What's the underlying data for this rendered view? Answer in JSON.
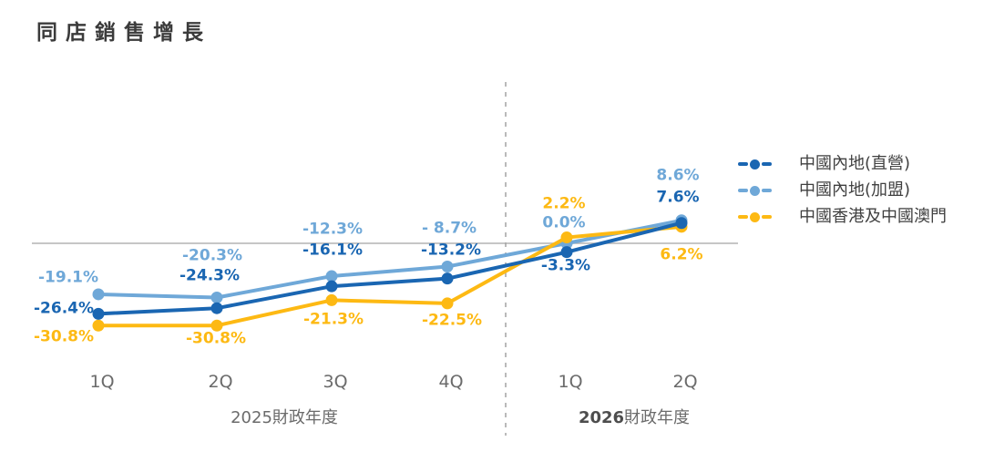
{
  "title": "同店銷售增長",
  "chart_data": {
    "type": "line",
    "title": "同店銷售增長",
    "categories": [
      "1Q",
      "2Q",
      "3Q",
      "4Q",
      "1Q",
      "2Q"
    ],
    "category_groups": [
      {
        "year": "2025",
        "suffix": "財政年度",
        "bold_year": false,
        "categories_span": [
          0,
          3
        ]
      },
      {
        "year": "2026",
        "suffix": "財政年度",
        "bold_year": true,
        "categories_span": [
          4,
          5
        ]
      }
    ],
    "series": [
      {
        "name": "中國內地(直營)",
        "color": "#1A66B2",
        "values": [
          -26.4,
          -24.3,
          -16.1,
          -13.2,
          -3.3,
          7.6
        ],
        "point_labels": [
          "-26.4%",
          "-24.3%",
          "-16.1%",
          "-13.2%",
          "-3.3%",
          "7.6%"
        ]
      },
      {
        "name": "中國內地(加盟)",
        "color": "#6FA8D8",
        "values": [
          -19.1,
          -20.3,
          -12.3,
          -8.7,
          0.0,
          8.6
        ],
        "point_labels": [
          "-19.1%",
          "-20.3%",
          "-12.3%",
          "- 8.7%",
          "0.0%",
          "8.6%"
        ]
      },
      {
        "name": "中國香港及中國澳門",
        "color": "#FDB913",
        "values": [
          -30.8,
          -30.8,
          -21.3,
          -22.5,
          2.2,
          6.2
        ],
        "point_labels": [
          "-30.8%",
          "-30.8%",
          "-21.3%",
          "-22.5%",
          "2.2%",
          "6.2%"
        ]
      }
    ],
    "ylim": [
      -35,
      12
    ],
    "baseline": 0,
    "grid": "baseline-only",
    "fiscal_year_divider": true,
    "legend_position": "right",
    "xlabel": "",
    "ylabel": ""
  },
  "colors": {
    "baseline": "#b3b3b3",
    "divider": "#a3a3a3",
    "axis_text": "#6b6b6b",
    "title_text": "#3b3b3b",
    "legend_text": "#404040"
  }
}
